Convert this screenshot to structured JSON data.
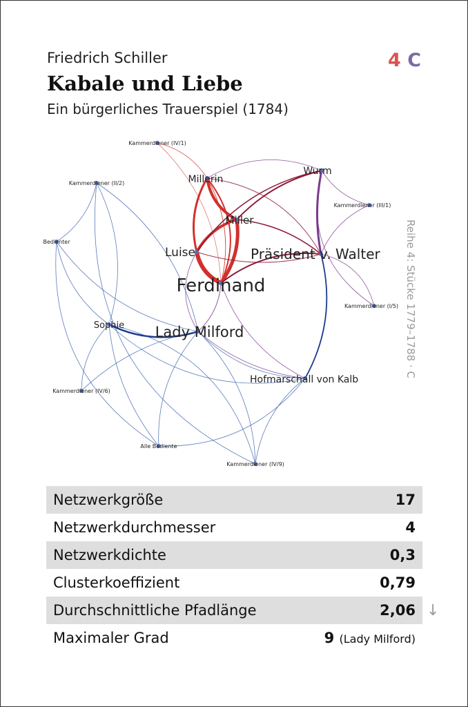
{
  "header": {
    "author": "Friedrich Schiller",
    "title": "Kabale und Liebe",
    "subtitle": "Ein bürgerliches Trauerspiel (1784)",
    "badge_number": "4",
    "badge_letter": "C",
    "side_text": "Reihe 4: Stücke 1779–1788 · C"
  },
  "network": {
    "nodes": [
      {
        "id": "Ferdinand",
        "label": "Ferdinand"
      },
      {
        "id": "Luise",
        "label": "Luise"
      },
      {
        "id": "Miller",
        "label": "Miller"
      },
      {
        "id": "Millerin",
        "label": "Millerin"
      },
      {
        "id": "Wurm",
        "label": "Wurm"
      },
      {
        "id": "Praesident",
        "label": "Präsident v. Walter"
      },
      {
        "id": "Milford",
        "label": "Lady Milford"
      },
      {
        "id": "Sophie",
        "label": "Sophie"
      },
      {
        "id": "Kalb",
        "label": "Hofmarschall von Kalb"
      },
      {
        "id": "K_IV1",
        "label": "Kammerdiener (IV/1)"
      },
      {
        "id": "K_II2",
        "label": "Kammerdiener (II/2)"
      },
      {
        "id": "Bedienter",
        "label": "Bedienter"
      },
      {
        "id": "K_III1",
        "label": "Kammerdiener (III/1)"
      },
      {
        "id": "K_I5",
        "label": "Kammerdiener (I/5)"
      },
      {
        "id": "K_IV6",
        "label": "Kammerdiener (IV/6)"
      },
      {
        "id": "AlleBediente",
        "label": "Alle Bediente"
      },
      {
        "id": "K_IV9",
        "label": "Kammerdiener (IV/9)"
      }
    ]
  },
  "colors": {
    "red": "#d0312d",
    "darkred": "#8e1a3a",
    "purple": "#7a3a8c",
    "blue": "#3d63b0",
    "darkblue": "#1e3a8a",
    "badge_number": "#d9534f",
    "badge_letter": "#7b6aa8"
  },
  "stats": [
    {
      "label": "Netzwerkgröße",
      "value": "17",
      "note": ""
    },
    {
      "label": "Netzwerkdurchmesser",
      "value": "4",
      "note": ""
    },
    {
      "label": "Netzwerkdichte",
      "value": "0,3",
      "note": ""
    },
    {
      "label": "Clusterkoeffizient",
      "value": "0,79",
      "note": ""
    },
    {
      "label": "Durchschnittliche Pfadlänge",
      "value": "2,06",
      "note": ""
    },
    {
      "label": "Maximaler Grad",
      "value": "9",
      "note": "(Lady Milford)"
    }
  ],
  "arrow_icon": "↓"
}
